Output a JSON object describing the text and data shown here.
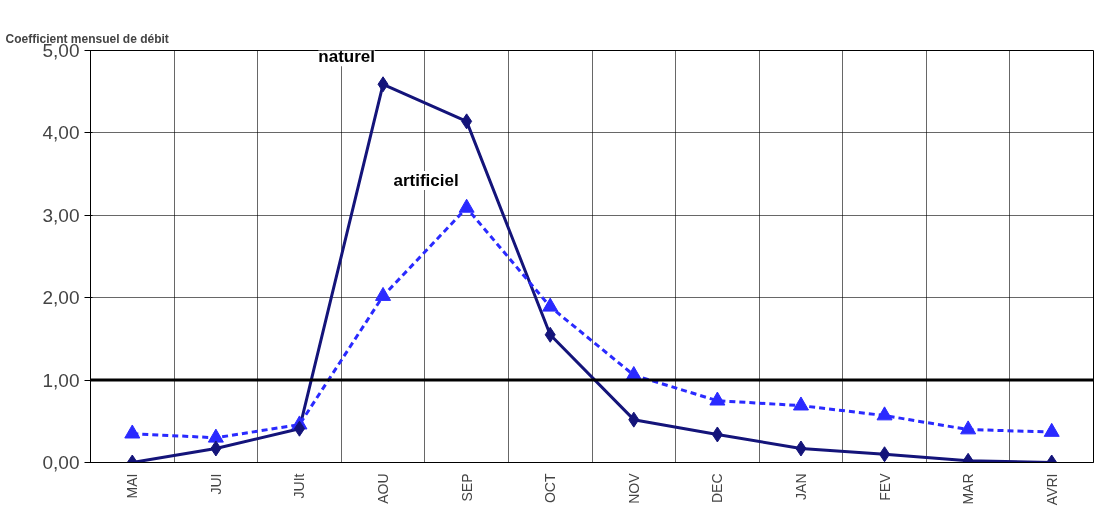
{
  "chart_data": {
    "type": "line",
    "title": "Coefficient mensuel de débit",
    "categories": [
      "MAI",
      "JUI",
      "JUIt",
      "AOU",
      "SEP",
      "OCT",
      "NOV",
      "DEC",
      "JAN",
      "FEV",
      "MAR",
      "AVRI"
    ],
    "series": [
      {
        "name": "naturel",
        "color": "#14147a",
        "marker": "diamond",
        "line_style": "solid",
        "values": [
          0.0,
          0.17,
          0.41,
          4.59,
          4.14,
          1.55,
          0.52,
          0.34,
          0.17,
          0.1,
          0.02,
          0.0
        ]
      },
      {
        "name": "artificiel",
        "color": "#2a2aff",
        "marker": "triangle",
        "line_style": "dashed",
        "values": [
          0.35,
          0.3,
          0.46,
          2.02,
          3.09,
          1.89,
          1.06,
          0.75,
          0.69,
          0.57,
          0.4,
          0.37
        ]
      }
    ],
    "ylim": [
      0,
      5
    ],
    "yticks": [
      {
        "value": 0,
        "label": "0,00"
      },
      {
        "value": 1,
        "label": "1,00"
      },
      {
        "value": 2,
        "label": "2,00"
      },
      {
        "value": 3,
        "label": "3,00"
      },
      {
        "value": 4,
        "label": "4,00"
      },
      {
        "value": 5,
        "label": "5,00"
      }
    ],
    "ref_lines": [
      {
        "axis": "y",
        "value": 1,
        "label": null,
        "color": "#000000"
      }
    ],
    "grid": true,
    "legend": false
  }
}
